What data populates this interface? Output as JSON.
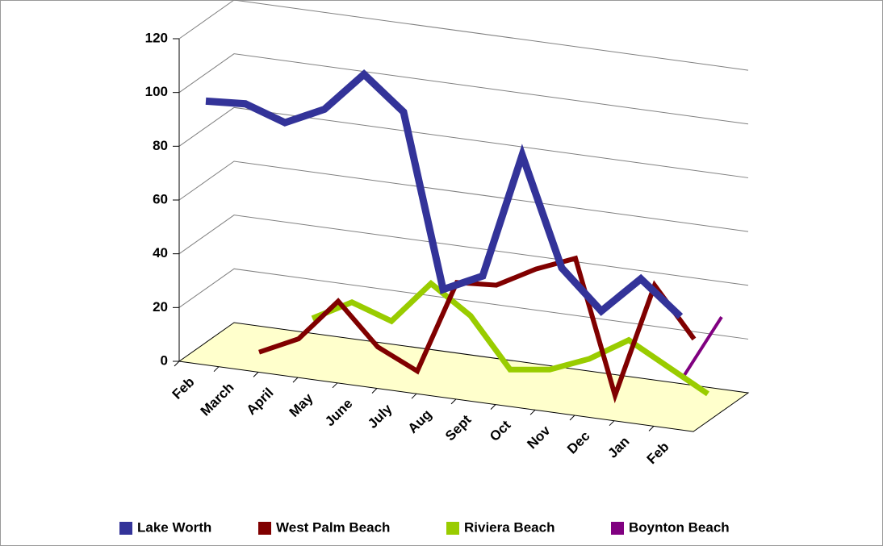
{
  "chart_data": {
    "type": "line",
    "categories": [
      "Feb",
      "March",
      "April",
      "May",
      "June",
      "July",
      "Aug",
      "Sept",
      "Oct",
      "Nov",
      "Dec",
      "Jan",
      "Feb"
    ],
    "series": [
      {
        "name": "Lake Worth",
        "color": "#333399",
        "values": [
          96,
          97,
          92,
          99,
          114,
          102,
          38,
          45,
          92,
          52,
          38,
          52,
          40
        ]
      },
      {
        "name": "West Palm Beach",
        "color": "#800000",
        "values": [
          null,
          1,
          8,
          24,
          9,
          2,
          37,
          38,
          46,
          52,
          3,
          46,
          28
        ]
      },
      {
        "name": "Riviera Beach",
        "color": "#99cc00",
        "values": [
          null,
          null,
          12,
          20,
          15,
          31,
          21,
          3,
          5,
          11,
          20,
          12,
          4
        ]
      },
      {
        "name": "Boynton Beach",
        "color": "#800080",
        "values": [
          null,
          null,
          null,
          null,
          null,
          null,
          null,
          null,
          null,
          null,
          null,
          4,
          29
        ]
      }
    ],
    "ylim": [
      0,
      120
    ],
    "yticks": [
      0,
      20,
      40,
      60,
      80,
      100,
      120
    ],
    "grid": true,
    "floor_color": "#ffffcc",
    "legend": "bottom"
  }
}
